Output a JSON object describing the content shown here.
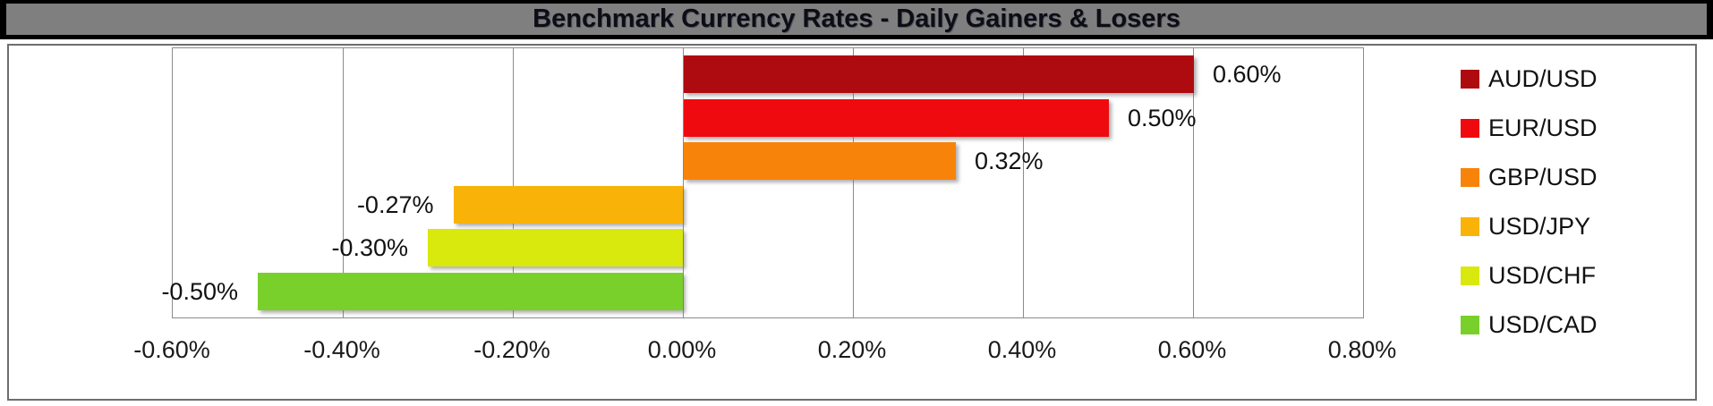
{
  "title": "Benchmark Currency Rates - Daily Gainers & Losers",
  "chart_data": {
    "type": "bar",
    "orientation": "horizontal",
    "title": "Benchmark Currency Rates - Daily Gainers & Losers",
    "xlabel": "",
    "ylabel": "",
    "xlim": [
      -0.6,
      0.8
    ],
    "grid": true,
    "legend_position": "right",
    "x_tick_labels": [
      "-0.60%",
      "-0.40%",
      "-0.20%",
      "0.00%",
      "0.20%",
      "0.40%",
      "0.60%",
      "0.80%"
    ],
    "x_tick_values": [
      -0.6,
      -0.4,
      -0.2,
      0.0,
      0.2,
      0.4,
      0.6,
      0.8
    ],
    "series": [
      {
        "name": "AUD/USD",
        "value": 0.6,
        "label": "0.60%",
        "color": "#ae0b10"
      },
      {
        "name": "EUR/USD",
        "value": 0.5,
        "label": "0.50%",
        "color": "#ee0a0e"
      },
      {
        "name": "GBP/USD",
        "value": 0.32,
        "label": "0.32%",
        "color": "#f8830b"
      },
      {
        "name": "USD/JPY",
        "value": -0.27,
        "label": "-0.27%",
        "color": "#f9b208"
      },
      {
        "name": "USD/CHF",
        "value": -0.3,
        "label": "-0.30%",
        "color": "#d9e80d"
      },
      {
        "name": "USD/CAD",
        "value": -0.5,
        "label": "-0.50%",
        "color": "#7ad02b"
      }
    ]
  },
  "colors": {
    "title_bar_bg": "#7f7f7f",
    "title_text": "#0d0d16",
    "gridline": "#8c8c8c",
    "chart_border": "#6e6e6e"
  }
}
